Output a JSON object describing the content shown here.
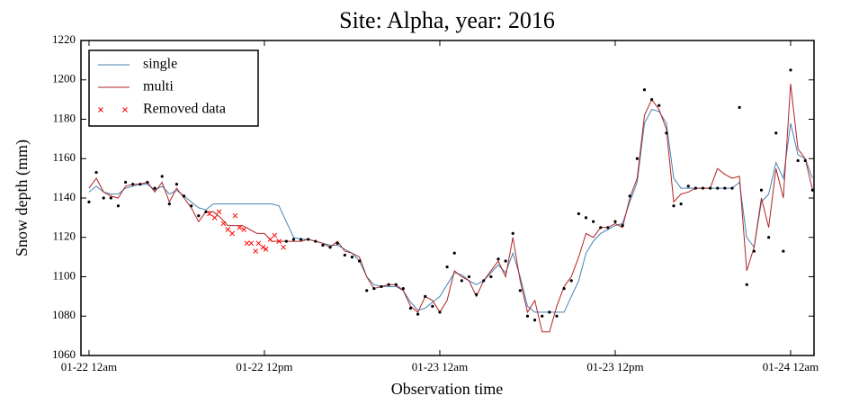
{
  "chart_data": {
    "type": "line",
    "title": "Site: Alpha, year: 2016",
    "x_label": "Observation time",
    "y_label": "Snow depth (mm)",
    "xlim": [
      -0.55,
      49.6
    ],
    "ylim": [
      1060,
      1220
    ],
    "xticks": [
      {
        "value": 0,
        "label": "01-22 12am"
      },
      {
        "value": 12,
        "label": "01-22 12pm"
      },
      {
        "value": 24,
        "label": "01-23 12am"
      },
      {
        "value": 36,
        "label": "01-23 12pm"
      },
      {
        "value": 48,
        "label": "01-24 12am"
      }
    ],
    "yticks": [
      1060,
      1080,
      1100,
      1120,
      1140,
      1160,
      1180,
      1200,
      1220
    ],
    "grid": false,
    "legend": "upper left",
    "x": [
      0,
      0.5,
      1,
      1.5,
      2,
      2.5,
      3,
      3.5,
      4,
      4.5,
      5,
      5.5,
      6,
      6.5,
      7,
      7.5,
      8,
      8.5,
      9,
      9.5,
      10,
      10.5,
      11,
      11.5,
      12,
      12.5,
      13,
      13.5,
      14,
      14.5,
      15,
      15.5,
      16,
      16.5,
      17,
      17.5,
      18,
      18.5,
      19,
      19.5,
      20,
      20.5,
      21,
      21.5,
      22,
      22.5,
      23,
      23.5,
      24,
      24.5,
      25,
      25.5,
      26,
      26.5,
      27,
      27.5,
      28,
      28.5,
      29,
      29.5,
      30,
      30.5,
      31,
      31.5,
      32,
      32.5,
      33,
      33.5,
      34,
      34.5,
      35,
      35.5,
      36,
      36.5,
      37,
      37.5,
      38,
      38.5,
      39,
      39.5,
      40,
      40.5,
      41,
      41.5,
      42,
      42.5,
      43,
      43.5,
      44,
      44.5,
      45,
      45.5,
      46,
      46.5,
      47,
      47.5,
      48,
      48.5,
      49,
      49.5
    ],
    "series": [
      {
        "name": "single",
        "color": "#4682b4",
        "style": "line",
        "values": [
          1143,
          1146,
          1143,
          1142,
          1142,
          1145,
          1146,
          1147,
          1147,
          1144,
          1146,
          1142,
          1144,
          1141,
          1138,
          1135,
          1134,
          1137,
          1137,
          1137,
          1137,
          1137,
          1137,
          1137,
          1137,
          1137,
          1136,
          1128,
          1120,
          1119,
          1119,
          1118,
          1117,
          1116,
          1116,
          1114,
          1112,
          1108,
          1100,
          1096,
          1095,
          1095,
          1095,
          1093,
          1087,
          1083,
          1084,
          1087,
          1090,
          1096,
          1102,
          1101,
          1098,
          1096,
          1098,
          1102,
          1106,
          1102,
          1112,
          1100,
          1085,
          1082,
          1082,
          1082,
          1082,
          1082,
          1090,
          1098,
          1112,
          1118,
          1122,
          1124,
          1126,
          1127,
          1138,
          1148,
          1178,
          1185,
          1184,
          1178,
          1150,
          1145,
          1145,
          1145,
          1145,
          1145,
          1145,
          1145,
          1145,
          1148,
          1120,
          1115,
          1138,
          1142,
          1158,
          1150,
          1178,
          1162,
          1160,
          1150
        ]
      },
      {
        "name": "multi",
        "color": "#b22222",
        "style": "line",
        "values": [
          1145,
          1150,
          1143,
          1141,
          1140,
          1146,
          1147,
          1147,
          1148,
          1143,
          1148,
          1138,
          1145,
          1140,
          1135,
          1128,
          1133,
          1133,
          1130,
          1126,
          1126,
          1126,
          1124,
          1122,
          1122,
          1118,
          1118,
          1118,
          1118,
          1118,
          1119,
          1118,
          1117,
          1115,
          1118,
          1113,
          1112,
          1110,
          1100,
          1094,
          1095,
          1096,
          1096,
          1093,
          1085,
          1082,
          1090,
          1088,
          1082,
          1088,
          1103,
          1100,
          1098,
          1090,
          1098,
          1103,
          1108,
          1100,
          1120,
          1098,
          1082,
          1088,
          1072,
          1072,
          1085,
          1095,
          1100,
          1110,
          1122,
          1120,
          1125,
          1125,
          1127,
          1125,
          1140,
          1150,
          1182,
          1190,
          1185,
          1175,
          1138,
          1142,
          1143,
          1145,
          1145,
          1145,
          1155,
          1152,
          1150,
          1151,
          1103,
          1115,
          1140,
          1125,
          1155,
          1140,
          1198,
          1165,
          1160,
          1144
        ]
      },
      {
        "color": "#000000",
        "style": "dot",
        "values": [
          1138,
          1153,
          1140,
          1140,
          1136,
          1148,
          1147,
          1147,
          1148,
          1145,
          1151,
          1137,
          1147,
          1141,
          1136,
          1131,
          1133,
          null,
          null,
          null,
          null,
          null,
          null,
          null,
          null,
          null,
          null,
          1118,
          1119,
          1119,
          1119,
          1118,
          1116,
          1115,
          1117,
          1111,
          1110,
          1108,
          1093,
          1094,
          1095,
          1096,
          1096,
          1094,
          1084,
          1081,
          1090,
          1085,
          1082,
          1105,
          1112,
          1098,
          1100,
          1091,
          1098,
          1100,
          1109,
          1108,
          1122,
          1093,
          1080,
          1078,
          1080,
          1082,
          1080,
          1094,
          1098,
          1132,
          1130,
          1128,
          1125,
          1125,
          1128,
          1126,
          1141,
          1160,
          1195,
          1190,
          1187,
          1173,
          1136,
          1137,
          1146,
          1145,
          1145,
          1145,
          1145,
          1145,
          1145,
          1186,
          1096,
          1113,
          1144,
          1120,
          1173,
          1113,
          1205,
          1159,
          1159,
          1144
        ]
      },
      {
        "name": "Removed data",
        "color": "#ff0000",
        "style": "x",
        "x": [
          8.25,
          8.6,
          8.9,
          9.2,
          9.5,
          9.8,
          10.0,
          10.3,
          10.6,
          10.8,
          11.1,
          11.4,
          11.6,
          11.9,
          12.1,
          12.4,
          12.7,
          13.0,
          13.3
        ],
        "values": [
          1132,
          1130,
          1133,
          1127,
          1124,
          1122,
          1131,
          1125,
          1124,
          1117,
          1117,
          1113,
          1117,
          1115,
          1114,
          1119,
          1121,
          1118,
          1115
        ]
      }
    ]
  }
}
